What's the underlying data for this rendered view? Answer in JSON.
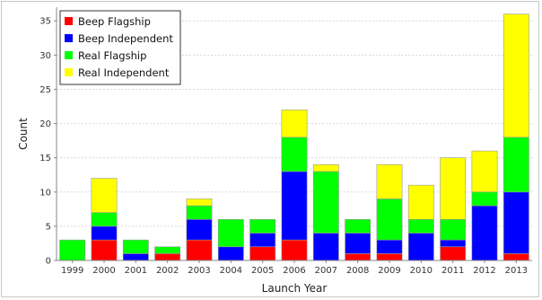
{
  "chart_data": {
    "type": "bar",
    "stacked": true,
    "xlabel": "Launch Year",
    "ylabel": "Count",
    "ylim": [
      0,
      37
    ],
    "yticks": [
      0,
      5,
      10,
      15,
      20,
      25,
      30,
      35
    ],
    "grid": true,
    "legend_position": "top-left",
    "categories": [
      "1999",
      "2000",
      "2001",
      "2002",
      "2003",
      "2004",
      "2005",
      "2006",
      "2007",
      "2008",
      "2009",
      "2010",
      "2011",
      "2012",
      "2013"
    ],
    "series": [
      {
        "name": "Beep Flagship",
        "color": "#ff0000",
        "values": [
          0,
          3,
          0,
          1,
          3,
          0,
          2,
          3,
          0,
          1,
          1,
          0,
          2,
          0,
          1
        ]
      },
      {
        "name": "Beep Independent",
        "color": "#0000ff",
        "values": [
          0,
          2,
          1,
          0,
          3,
          2,
          2,
          10,
          4,
          3,
          2,
          4,
          1,
          8,
          9
        ]
      },
      {
        "name": "Real Flagship",
        "color": "#00ff00",
        "values": [
          3,
          2,
          2,
          1,
          2,
          4,
          2,
          5,
          9,
          2,
          6,
          2,
          3,
          2,
          8
        ]
      },
      {
        "name": "Real Independent",
        "color": "#ffff00",
        "values": [
          0,
          5,
          0,
          0,
          1,
          0,
          0,
          4,
          1,
          0,
          5,
          5,
          9,
          6,
          18
        ]
      }
    ]
  }
}
